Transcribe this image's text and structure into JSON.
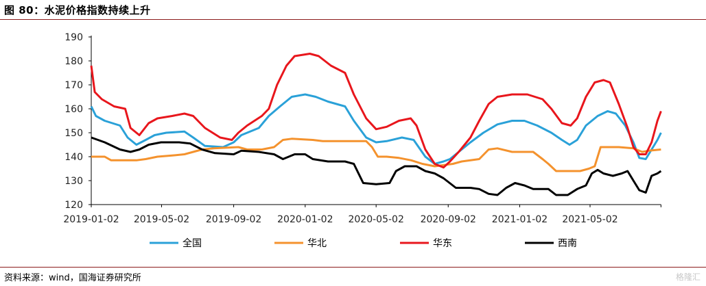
{
  "title": "图 80：水泥价格指数持续上升",
  "source": "资料来源：wind，国海证券研究所",
  "watermark": "格隆汇",
  "colors": {
    "title_rule": "#8b1a1a",
    "axis": "#000000"
  },
  "chart_data": {
    "type": "line",
    "title": "",
    "xlabel": "",
    "ylabel": "",
    "ylim": [
      120,
      190
    ],
    "yticks": [
      120,
      130,
      140,
      150,
      160,
      170,
      180,
      190
    ],
    "xlim": [
      "2019-01-02",
      "2021-08-31"
    ],
    "xticks": [
      "2019-01-02",
      "2019-05-02",
      "2019-09-02",
      "2020-01-02",
      "2020-05-02",
      "2020-09-02",
      "2021-01-02",
      "2021-05-02"
    ],
    "grid": false,
    "legend": "bottom",
    "series": [
      {
        "name": "全国",
        "color": "#2aa1d8",
        "points": [
          [
            "2019-01-02",
            161
          ],
          [
            "2019-01-10",
            157
          ],
          [
            "2019-01-25",
            155
          ],
          [
            "2019-02-20",
            153
          ],
          [
            "2019-03-05",
            148
          ],
          [
            "2019-03-20",
            145
          ],
          [
            "2019-04-05",
            147
          ],
          [
            "2019-04-20",
            149
          ],
          [
            "2019-05-10",
            150
          ],
          [
            "2019-06-10",
            150.5
          ],
          [
            "2019-06-25",
            148
          ],
          [
            "2019-07-15",
            144.5
          ],
          [
            "2019-08-15",
            144
          ],
          [
            "2019-09-02",
            146
          ],
          [
            "2019-09-15",
            149
          ],
          [
            "2019-10-15",
            152
          ],
          [
            "2019-11-01",
            157
          ],
          [
            "2019-11-20",
            161
          ],
          [
            "2019-12-10",
            165
          ],
          [
            "2020-01-02",
            166
          ],
          [
            "2020-01-20",
            165
          ],
          [
            "2020-02-10",
            163
          ],
          [
            "2020-03-10",
            161
          ],
          [
            "2020-03-25",
            155
          ],
          [
            "2020-04-15",
            148
          ],
          [
            "2020-05-02",
            146
          ],
          [
            "2020-05-20",
            146.5
          ],
          [
            "2020-06-15",
            148
          ],
          [
            "2020-07-05",
            147
          ],
          [
            "2020-07-25",
            140
          ],
          [
            "2020-08-10",
            137
          ],
          [
            "2020-08-25",
            138
          ],
          [
            "2020-09-05",
            139
          ],
          [
            "2020-09-20",
            142
          ],
          [
            "2020-10-10",
            146
          ],
          [
            "2020-11-01",
            150
          ],
          [
            "2020-11-25",
            153.5
          ],
          [
            "2020-12-20",
            155
          ],
          [
            "2021-01-10",
            155
          ],
          [
            "2021-02-01",
            153
          ],
          [
            "2021-02-25",
            150
          ],
          [
            "2021-03-15",
            147
          ],
          [
            "2021-03-28",
            145
          ],
          [
            "2021-04-10",
            147
          ],
          [
            "2021-04-25",
            153
          ],
          [
            "2021-05-15",
            157
          ],
          [
            "2021-06-01",
            159
          ],
          [
            "2021-06-15",
            158
          ],
          [
            "2021-07-01",
            153
          ],
          [
            "2021-07-15",
            146
          ],
          [
            "2021-07-25",
            139.5
          ],
          [
            "2021-08-05",
            139
          ],
          [
            "2021-08-15",
            143
          ],
          [
            "2021-08-25",
            147
          ],
          [
            "2021-08-31",
            150
          ]
        ]
      },
      {
        "name": "华北",
        "color": "#f4922d",
        "points": [
          [
            "2019-01-02",
            140
          ],
          [
            "2019-01-25",
            140
          ],
          [
            "2019-02-05",
            138.5
          ],
          [
            "2019-03-20",
            138.5
          ],
          [
            "2019-04-05",
            139
          ],
          [
            "2019-04-25",
            140
          ],
          [
            "2019-05-20",
            140.5
          ],
          [
            "2019-06-10",
            141
          ],
          [
            "2019-06-25",
            142
          ],
          [
            "2019-07-10",
            143
          ],
          [
            "2019-07-30",
            143.5
          ],
          [
            "2019-09-10",
            144
          ],
          [
            "2019-09-25",
            143
          ],
          [
            "2019-10-20",
            143
          ],
          [
            "2019-11-10",
            144
          ],
          [
            "2019-11-25",
            147
          ],
          [
            "2019-12-10",
            147.5
          ],
          [
            "2020-01-15",
            147
          ],
          [
            "2020-02-01",
            146.5
          ],
          [
            "2020-04-15",
            146.5
          ],
          [
            "2020-04-25",
            144
          ],
          [
            "2020-05-05",
            140
          ],
          [
            "2020-05-20",
            140
          ],
          [
            "2020-06-10",
            139.5
          ],
          [
            "2020-07-01",
            138.5
          ],
          [
            "2020-07-20",
            137
          ],
          [
            "2020-08-10",
            136
          ],
          [
            "2020-08-25",
            136.5
          ],
          [
            "2020-09-10",
            137
          ],
          [
            "2020-09-25",
            138
          ],
          [
            "2020-10-25",
            139
          ],
          [
            "2020-11-10",
            143
          ],
          [
            "2020-11-25",
            143.5
          ],
          [
            "2020-12-20",
            142
          ],
          [
            "2021-01-25",
            142
          ],
          [
            "2021-02-10",
            139
          ],
          [
            "2021-02-20",
            137
          ],
          [
            "2021-03-05",
            134
          ],
          [
            "2021-04-15",
            134
          ],
          [
            "2021-04-30",
            135
          ],
          [
            "2021-05-10",
            136
          ],
          [
            "2021-05-20",
            144
          ],
          [
            "2021-06-20",
            144
          ],
          [
            "2021-07-15",
            143.5
          ],
          [
            "2021-07-30",
            142
          ],
          [
            "2021-08-10",
            142.5
          ],
          [
            "2021-08-31",
            143
          ]
        ]
      },
      {
        "name": "华东",
        "color": "#e8161c",
        "points": [
          [
            "2019-01-02",
            178
          ],
          [
            "2019-01-08",
            167
          ],
          [
            "2019-01-20",
            164
          ],
          [
            "2019-02-10",
            161
          ],
          [
            "2019-03-01",
            160
          ],
          [
            "2019-03-10",
            152
          ],
          [
            "2019-03-25",
            149
          ],
          [
            "2019-04-10",
            154
          ],
          [
            "2019-04-25",
            156
          ],
          [
            "2019-05-20",
            157
          ],
          [
            "2019-06-10",
            158
          ],
          [
            "2019-06-25",
            157
          ],
          [
            "2019-07-15",
            152
          ],
          [
            "2019-08-10",
            148
          ],
          [
            "2019-08-30",
            147
          ],
          [
            "2019-09-10",
            150
          ],
          [
            "2019-09-25",
            153
          ],
          [
            "2019-10-20",
            157
          ],
          [
            "2019-11-01",
            160
          ],
          [
            "2019-11-15",
            170
          ],
          [
            "2019-12-01",
            178
          ],
          [
            "2019-12-15",
            182
          ],
          [
            "2020-01-10",
            183
          ],
          [
            "2020-01-25",
            182
          ],
          [
            "2020-02-15",
            178
          ],
          [
            "2020-03-10",
            175
          ],
          [
            "2020-03-25",
            166
          ],
          [
            "2020-04-15",
            156
          ],
          [
            "2020-05-02",
            151.5
          ],
          [
            "2020-05-20",
            152.5
          ],
          [
            "2020-06-10",
            155
          ],
          [
            "2020-06-30",
            156
          ],
          [
            "2020-07-10",
            153
          ],
          [
            "2020-07-25",
            143
          ],
          [
            "2020-08-10",
            137
          ],
          [
            "2020-08-25",
            135.5
          ],
          [
            "2020-09-05",
            138
          ],
          [
            "2020-09-20",
            142
          ],
          [
            "2020-10-10",
            148
          ],
          [
            "2020-10-25",
            155
          ],
          [
            "2020-11-10",
            162
          ],
          [
            "2020-11-25",
            165
          ],
          [
            "2020-12-20",
            166
          ],
          [
            "2021-01-15",
            166
          ],
          [
            "2021-02-10",
            164
          ],
          [
            "2021-02-25",
            160
          ],
          [
            "2021-03-15",
            154
          ],
          [
            "2021-03-30",
            153
          ],
          [
            "2021-04-10",
            156
          ],
          [
            "2021-04-25",
            165
          ],
          [
            "2021-05-10",
            171
          ],
          [
            "2021-05-25",
            172
          ],
          [
            "2021-06-05",
            171
          ],
          [
            "2021-06-20",
            162
          ],
          [
            "2021-07-05",
            152
          ],
          [
            "2021-07-15",
            144
          ],
          [
            "2021-07-25",
            141
          ],
          [
            "2021-08-05",
            141
          ],
          [
            "2021-08-15",
            146
          ],
          [
            "2021-08-25",
            155
          ],
          [
            "2021-08-31",
            159
          ]
        ]
      },
      {
        "name": "西南",
        "color": "#000000",
        "points": [
          [
            "2019-01-02",
            148
          ],
          [
            "2019-01-25",
            146
          ],
          [
            "2019-02-20",
            143
          ],
          [
            "2019-03-10",
            142
          ],
          [
            "2019-03-25",
            143
          ],
          [
            "2019-04-10",
            145
          ],
          [
            "2019-05-01",
            146
          ],
          [
            "2019-06-01",
            146
          ],
          [
            "2019-06-20",
            145.5
          ],
          [
            "2019-07-10",
            143
          ],
          [
            "2019-08-01",
            141.5
          ],
          [
            "2019-09-02",
            141
          ],
          [
            "2019-09-15",
            142.5
          ],
          [
            "2019-10-15",
            142
          ],
          [
            "2019-11-10",
            141
          ],
          [
            "2019-11-25",
            139
          ],
          [
            "2019-12-15",
            141
          ],
          [
            "2020-01-02",
            141
          ],
          [
            "2020-01-15",
            139
          ],
          [
            "2020-02-10",
            138
          ],
          [
            "2020-03-10",
            138
          ],
          [
            "2020-03-25",
            137
          ],
          [
            "2020-04-10",
            129
          ],
          [
            "2020-05-02",
            128.5
          ],
          [
            "2020-05-25",
            129
          ],
          [
            "2020-06-05",
            134
          ],
          [
            "2020-06-20",
            136
          ],
          [
            "2020-07-10",
            136
          ],
          [
            "2020-07-25",
            134
          ],
          [
            "2020-08-10",
            133
          ],
          [
            "2020-08-25",
            131
          ],
          [
            "2020-09-15",
            127
          ],
          [
            "2020-10-10",
            127
          ],
          [
            "2020-10-25",
            126.5
          ],
          [
            "2020-11-10",
            124.5
          ],
          [
            "2020-11-25",
            124
          ],
          [
            "2020-12-10",
            127
          ],
          [
            "2020-12-25",
            129
          ],
          [
            "2021-01-10",
            128
          ],
          [
            "2021-01-25",
            126.5
          ],
          [
            "2021-02-20",
            126.5
          ],
          [
            "2021-03-05",
            124
          ],
          [
            "2021-03-25",
            124
          ],
          [
            "2021-04-10",
            126.5
          ],
          [
            "2021-04-25",
            128
          ],
          [
            "2021-05-05",
            133
          ],
          [
            "2021-05-15",
            134.5
          ],
          [
            "2021-05-25",
            133
          ],
          [
            "2021-06-10",
            132
          ],
          [
            "2021-06-25",
            133
          ],
          [
            "2021-07-05",
            134
          ],
          [
            "2021-07-15",
            130
          ],
          [
            "2021-07-25",
            126
          ],
          [
            "2021-08-05",
            125
          ],
          [
            "2021-08-15",
            132
          ],
          [
            "2021-08-25",
            133
          ],
          [
            "2021-08-31",
            134
          ]
        ]
      }
    ]
  }
}
